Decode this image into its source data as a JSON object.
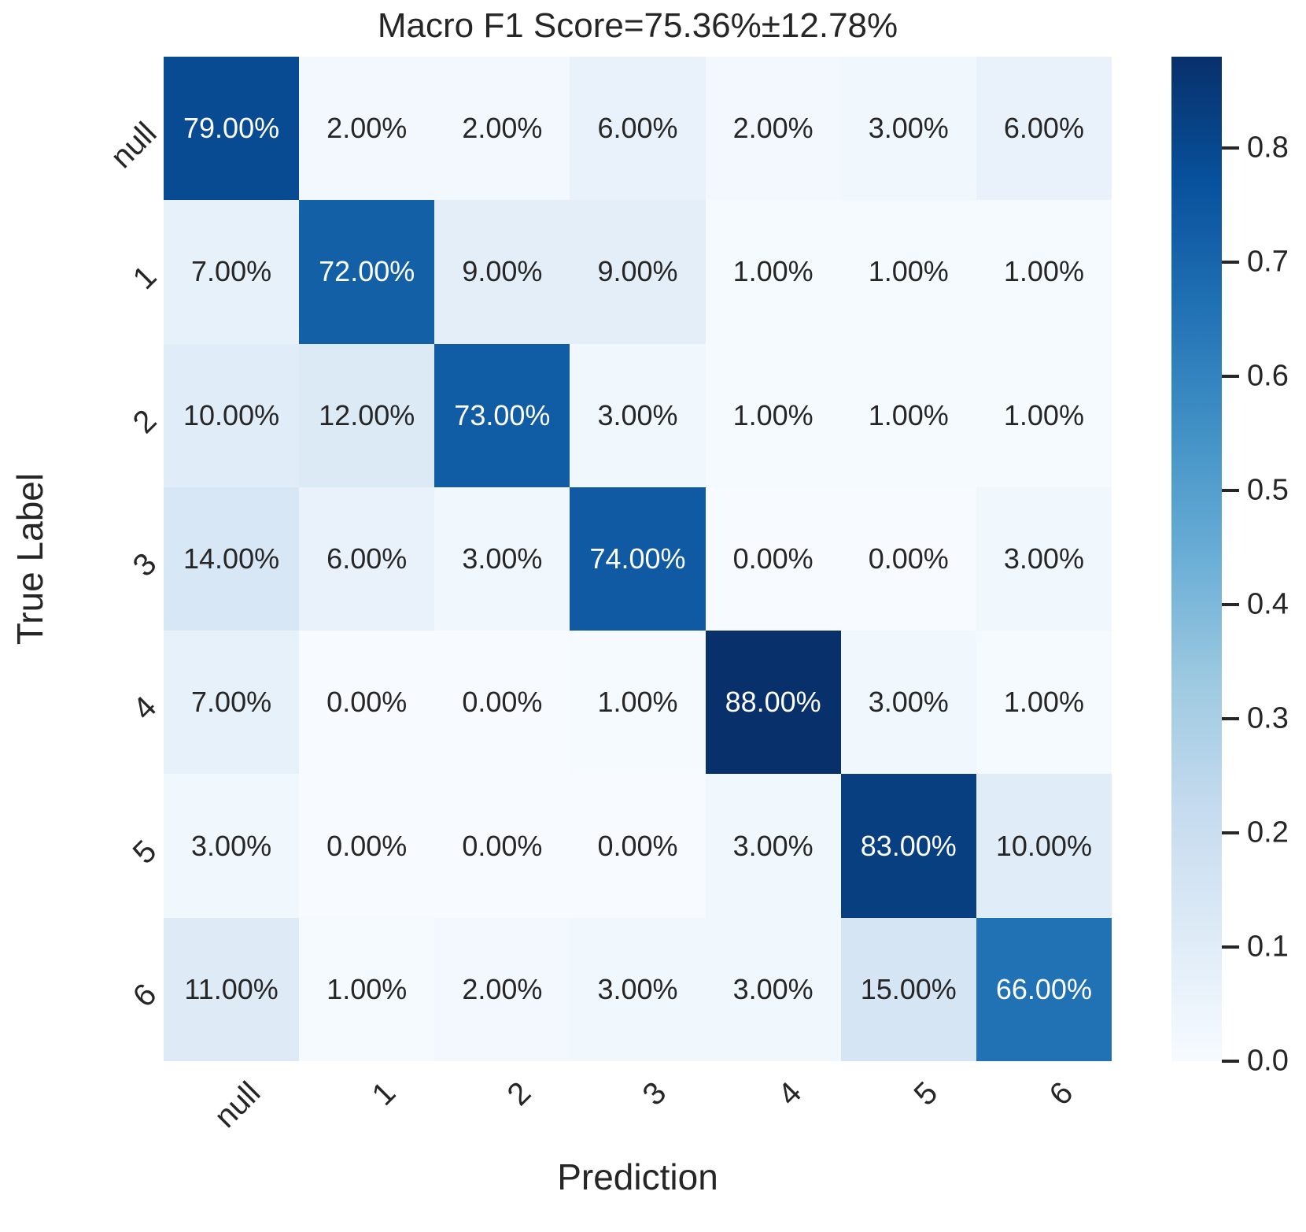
{
  "chart_data": {
    "type": "heatmap",
    "title": "Macro F1 Score=75.36%±12.78%",
    "xlabel": "Prediction",
    "ylabel": "True Label",
    "x_categories": [
      "null",
      "1",
      "2",
      "3",
      "4",
      "5",
      "6"
    ],
    "y_categories": [
      "null",
      "1",
      "2",
      "3",
      "4",
      "5",
      "6"
    ],
    "values_percent": [
      [
        79,
        2,
        2,
        6,
        2,
        3,
        6
      ],
      [
        7,
        72,
        9,
        9,
        1,
        1,
        1
      ],
      [
        10,
        12,
        73,
        3,
        1,
        1,
        1
      ],
      [
        14,
        6,
        3,
        74,
        0,
        0,
        3
      ],
      [
        7,
        0,
        0,
        1,
        88,
        3,
        1
      ],
      [
        3,
        0,
        0,
        0,
        3,
        83,
        10
      ],
      [
        11,
        1,
        2,
        3,
        3,
        15,
        66
      ]
    ],
    "cell_labels": [
      [
        "79.00%",
        "2.00%",
        "2.00%",
        "6.00%",
        "2.00%",
        "3.00%",
        "6.00%"
      ],
      [
        "7.00%",
        "72.00%",
        "9.00%",
        "9.00%",
        "1.00%",
        "1.00%",
        "1.00%"
      ],
      [
        "10.00%",
        "12.00%",
        "73.00%",
        "3.00%",
        "1.00%",
        "1.00%",
        "1.00%"
      ],
      [
        "14.00%",
        "6.00%",
        "3.00%",
        "74.00%",
        "0.00%",
        "0.00%",
        "3.00%"
      ],
      [
        "7.00%",
        "0.00%",
        "0.00%",
        "1.00%",
        "88.00%",
        "3.00%",
        "1.00%"
      ],
      [
        "3.00%",
        "0.00%",
        "0.00%",
        "0.00%",
        "3.00%",
        "83.00%",
        "10.00%"
      ],
      [
        "11.00%",
        "1.00%",
        "2.00%",
        "3.00%",
        "3.00%",
        "15.00%",
        "66.00%"
      ]
    ],
    "colorbar": {
      "vmin": 0.0,
      "vmax": 0.88,
      "tick_labels": [
        "0.0",
        "0.1",
        "0.2",
        "0.3",
        "0.4",
        "0.5",
        "0.6",
        "0.7",
        "0.8"
      ],
      "position": "right"
    },
    "colormap": {
      "name": "Blues",
      "stops": [
        "#f7fbff",
        "#deebf7",
        "#c6dbef",
        "#9ecae1",
        "#6baed6",
        "#4292c6",
        "#2171b5",
        "#08519c",
        "#08306b"
      ]
    },
    "annotation_colors": {
      "dark": "#262626",
      "light": "#ffffff"
    },
    "grid": false,
    "legend": false
  }
}
